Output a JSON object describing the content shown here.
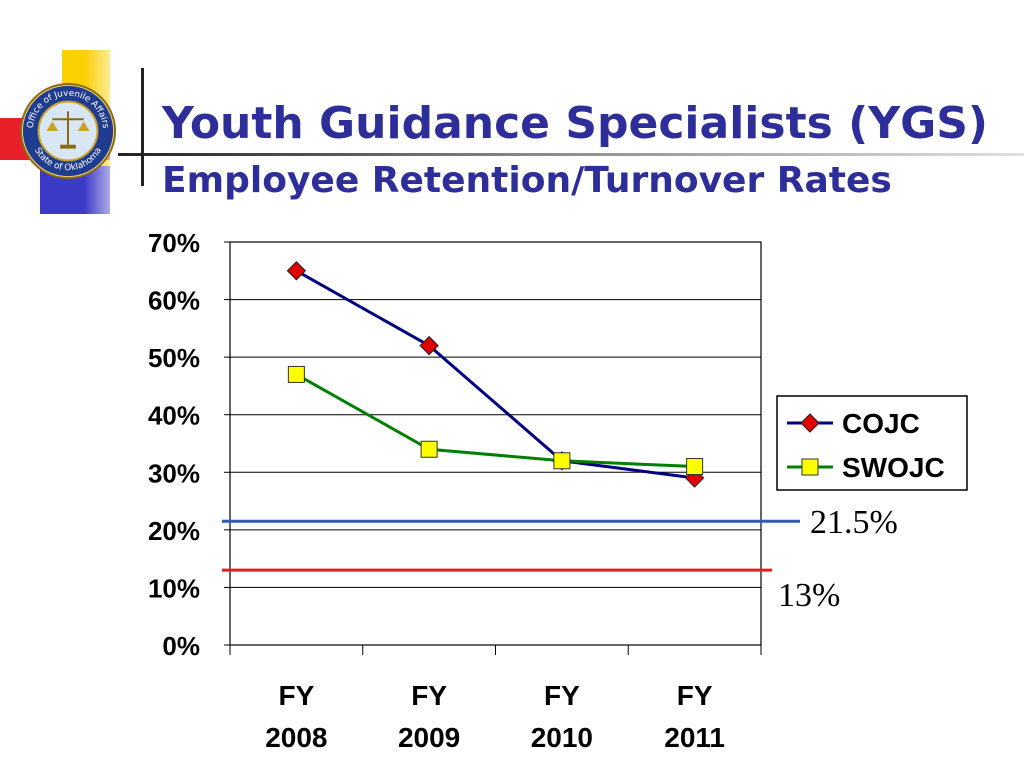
{
  "header": {
    "title": "Youth Guidance Specialists (YGS)",
    "subtitle": "Employee Retention/Turnover Rates"
  },
  "logo": {
    "name": "seal-logo",
    "text_top": "Office of Juvenile Affairs",
    "text_bottom": "State of Oklahoma"
  },
  "colors": {
    "title": "#2e2e9a",
    "cojc": "#000080",
    "cojc_marker": "#e00000",
    "swojc": "#008000",
    "swojc_marker": "#ffff00",
    "ref_blue": "#2e5ab8",
    "ref_red": "#e02020"
  },
  "chart_data": {
    "type": "line",
    "title": "",
    "xlabel": "",
    "ylabel": "",
    "categories": [
      "FY 2008",
      "FY 2009",
      "FY 2010",
      "FY 2011"
    ],
    "ylim": [
      0,
      70
    ],
    "yticks": [
      "0%",
      "10%",
      "20%",
      "30%",
      "40%",
      "50%",
      "60%",
      "70%"
    ],
    "grid": true,
    "legend": "right",
    "series": [
      {
        "name": "COJC",
        "marker": "diamond",
        "values": [
          65,
          52,
          32,
          29
        ]
      },
      {
        "name": "SWOJC",
        "marker": "square",
        "values": [
          47,
          34,
          32,
          31
        ]
      }
    ],
    "reference_lines": [
      {
        "label": "21.5%",
        "value": 21.5,
        "color": "blue"
      },
      {
        "label": "13%",
        "value": 13,
        "color": "red"
      }
    ]
  }
}
